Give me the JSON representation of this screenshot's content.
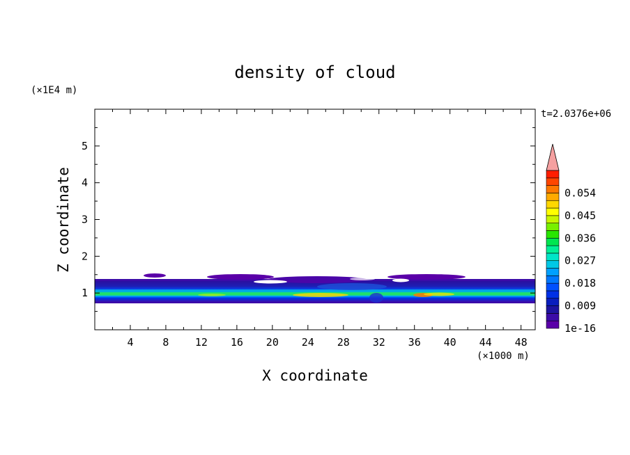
{
  "chart_data": {
    "type": "heatmap",
    "title": "density of cloud",
    "xlabel": "X coordinate",
    "ylabel": "Z coordinate",
    "x_unit": "(×1000 m)",
    "y_unit": "(×1E4 m)",
    "time_label": "t=2.0376e+06",
    "x_ticks": [
      4,
      8,
      12,
      16,
      20,
      24,
      28,
      32,
      36,
      40,
      44,
      48
    ],
    "y_ticks": [
      1,
      2,
      3,
      4,
      5
    ],
    "xlim": [
      0,
      49.6
    ],
    "ylim": [
      0,
      6
    ],
    "grid": false,
    "colorbar": {
      "labels": [
        "1e-16",
        "0.009",
        "0.018",
        "0.027",
        "0.036",
        "0.045",
        "0.054"
      ],
      "min": 0,
      "max": 0.06,
      "step": 0.003,
      "extend": "max",
      "colors": [
        "#5a00a8",
        "#3c0ca8",
        "#1e14a0",
        "#0a1ebe",
        "#0030e6",
        "#0050ff",
        "#0078ff",
        "#00a0ff",
        "#00c8e6",
        "#00e6c8",
        "#00f096",
        "#00e650",
        "#28e600",
        "#78f000",
        "#c8f500",
        "#ffff00",
        "#ffd700",
        "#ffaa00",
        "#ff7800",
        "#ff4600",
        "#ff1e00"
      ],
      "over_color": "#f5a0a0"
    }
  }
}
